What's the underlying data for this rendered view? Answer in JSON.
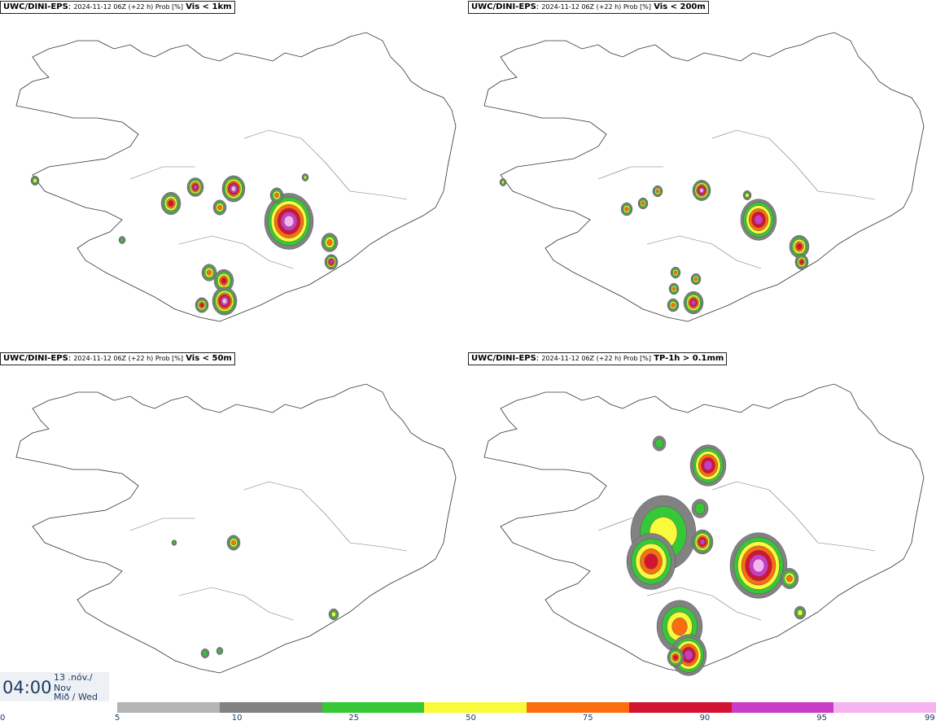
{
  "panels": [
    {
      "model": "UWC/DINI-EPS",
      "meta": "2024-11-12 06Z (+22 h) Prob [%]",
      "variable": "Vis < 1km"
    },
    {
      "model": "UWC/DINI-EPS",
      "meta": "2024-11-12 06Z (+22 h) Prob [%]",
      "variable": "Vis < 200m"
    },
    {
      "model": "UWC/DINI-EPS",
      "meta": "2024-11-12 06Z (+22 h) Prob [%]",
      "variable": "Vis < 50m"
    },
    {
      "model": "UWC/DINI-EPS",
      "meta": "2024-11-12 06Z (+22 h) Prob [%]",
      "variable": "TP-1h > 0.1mm"
    }
  ],
  "clock": {
    "time": "04:00",
    "day": "13 .nóv./",
    "month": "Nov",
    "weekday": "Mið / Wed"
  },
  "colorbar": {
    "ticks": [
      "0",
      "5",
      "10",
      "25",
      "50",
      "75",
      "90",
      "95",
      "99"
    ],
    "colors": [
      "#b4b4b4",
      "#828282",
      "#36c836",
      "#fafa3c",
      "#fa6e0f",
      "#d21432",
      "#c83cc8",
      "#f5b4f0"
    ]
  }
}
